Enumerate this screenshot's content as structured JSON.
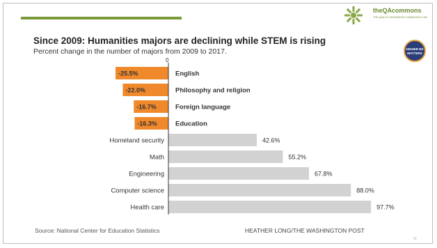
{
  "header": {
    "logo_name": "theQAcommons",
    "logo_subtitle": "THE QUALITY ASSURANCE COMMONS for HIGHER & POSTSECONDARY EDUCATION",
    "badge_lines": [
      "HIGHER ED",
      "MATTERS"
    ],
    "accent_color": "#7a9a3a"
  },
  "chart_data": {
    "type": "bar",
    "orientation": "horizontal",
    "title": "Since 2009: Humanities majors are declining while STEM is rising",
    "subtitle": "Percent change in the number of majors from 2009 to 2017.",
    "zero_label": "0",
    "categories": [
      "English",
      "Philosophy and religion",
      "Foreign language",
      "Education",
      "Homeland security",
      "Math",
      "Engineering",
      "Computer science",
      "Health care"
    ],
    "values": [
      -25.5,
      -22.0,
      -16.7,
      -16.3,
      42.6,
      55.2,
      67.8,
      88.0,
      97.7
    ],
    "value_labels": [
      "-25.5%",
      "-22.0%",
      "-16.7%",
      "-16.3%",
      "42.6%",
      "55.2%",
      "67.8%",
      "88.0%",
      "97.7%"
    ],
    "colors": {
      "negative": "#f0892b",
      "positive": "#d2d2d2"
    },
    "source": "Source: National Center for Education Statistics",
    "credit": "HEATHER LONG/THE WASHINGTON POST"
  },
  "page_number": "11"
}
